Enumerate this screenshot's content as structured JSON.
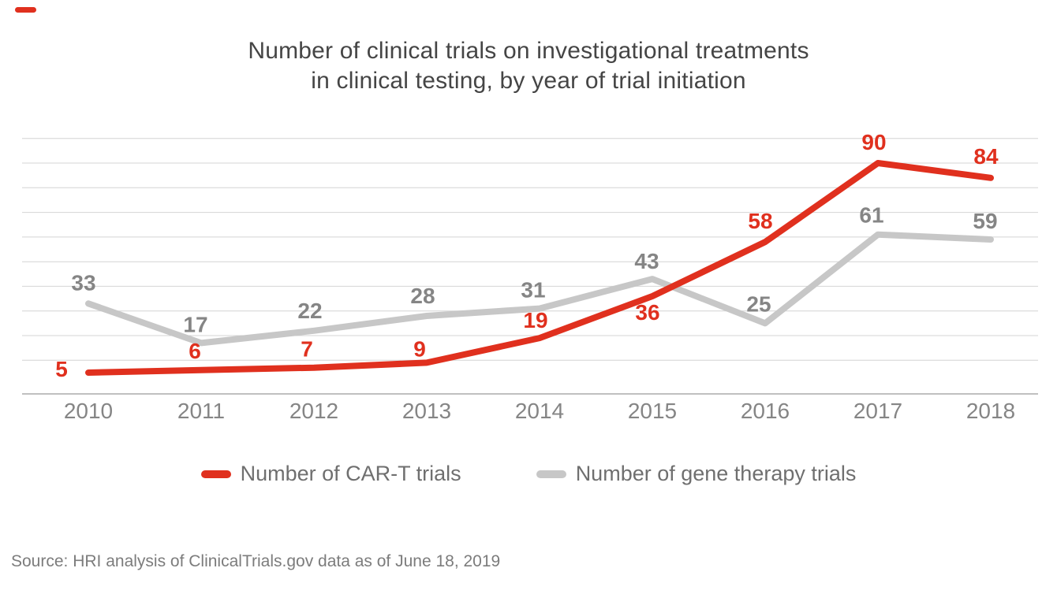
{
  "page": {
    "background": "#ffffff",
    "brand_color": "#e0301e"
  },
  "title": {
    "lines": [
      "Number of clinical trials on investigational treatments",
      "in clinical testing, by year of trial initiation"
    ]
  },
  "chart_data": {
    "type": "line",
    "categories": [
      "2010",
      "2011",
      "2012",
      "2013",
      "2014",
      "2015",
      "2016",
      "2017",
      "2018"
    ],
    "series": [
      {
        "name": "Number of CAR-T trials",
        "color": "#e0301e",
        "values": [
          5,
          6,
          7,
          9,
          19,
          36,
          58,
          90,
          84
        ]
      },
      {
        "name": "Number of gene therapy trials",
        "color": "#c7c7c7",
        "values": [
          33,
          17,
          22,
          28,
          31,
          43,
          25,
          61,
          59
        ]
      }
    ],
    "title": "Number of clinical trials on investigational treatments in clinical testing, by year of trial initiation",
    "xlabel": "",
    "ylabel": "",
    "ylim": [
      0,
      100
    ],
    "gridline_step": 10,
    "grid": true,
    "data_labels": true,
    "legend_position": "bottom",
    "grid_color": "#d4d4d4",
    "axis_color": "#ababab",
    "label_gray": "#858585"
  },
  "legend": {
    "items": [
      {
        "label": "Number of CAR-T trials",
        "color": "#e0301e"
      },
      {
        "label": "Number of gene therapy trials",
        "color": "#c7c7c7"
      }
    ]
  },
  "source": {
    "text": "Source: HRI analysis of ClinicalTrials.gov data as of June 18, 2019"
  }
}
